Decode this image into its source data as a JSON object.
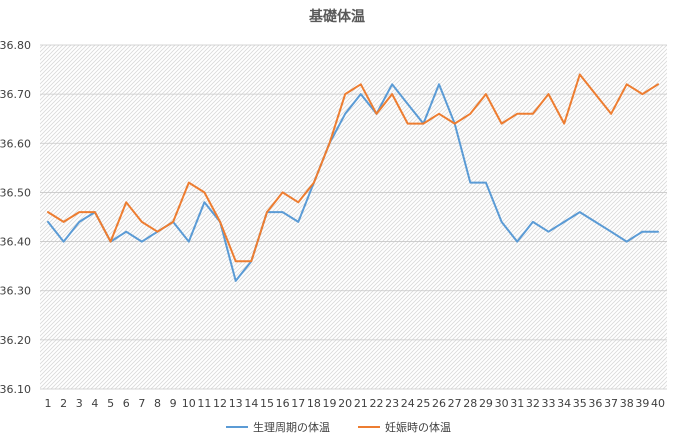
{
  "chart_data": {
    "type": "line",
    "title": "基礎体温",
    "xlabel": "",
    "ylabel": "",
    "categories": [
      1,
      2,
      3,
      4,
      5,
      6,
      7,
      8,
      9,
      10,
      11,
      12,
      13,
      14,
      15,
      16,
      17,
      18,
      19,
      20,
      21,
      22,
      23,
      24,
      25,
      26,
      27,
      28,
      29,
      30,
      31,
      32,
      33,
      34,
      35,
      36,
      37,
      38,
      39,
      40
    ],
    "ylim": [
      36.1,
      36.8
    ],
    "yticks": [
      "36.10",
      "36.20",
      "36.30",
      "36.40",
      "36.50",
      "36.60",
      "36.70",
      "36.80"
    ],
    "grid": "hatched",
    "legend_position": "bottom",
    "series": [
      {
        "name": "生理周期の体温",
        "color": "#5b9bd5",
        "values": [
          36.44,
          36.4,
          36.44,
          36.46,
          36.4,
          36.42,
          36.4,
          36.42,
          36.44,
          36.4,
          36.48,
          36.44,
          36.32,
          36.36,
          36.46,
          36.46,
          36.44,
          36.52,
          36.6,
          36.66,
          36.7,
          36.66,
          36.72,
          36.68,
          36.64,
          36.72,
          36.64,
          36.52,
          36.52,
          36.44,
          36.4,
          36.44,
          36.42,
          36.44,
          36.46,
          36.44,
          36.42,
          36.4,
          36.42,
          36.42
        ]
      },
      {
        "name": "妊娠時の体温",
        "color": "#ed7d31",
        "values": [
          36.46,
          36.44,
          36.46,
          36.46,
          36.4,
          36.48,
          36.44,
          36.42,
          36.44,
          36.52,
          36.5,
          36.44,
          36.36,
          36.36,
          36.46,
          36.5,
          36.48,
          36.52,
          36.6,
          36.7,
          36.72,
          36.66,
          36.7,
          36.64,
          36.64,
          36.66,
          36.64,
          36.66,
          36.7,
          36.64,
          36.66,
          36.66,
          36.7,
          36.64,
          36.74,
          36.7,
          36.66,
          36.72,
          36.7,
          36.72
        ]
      }
    ]
  }
}
